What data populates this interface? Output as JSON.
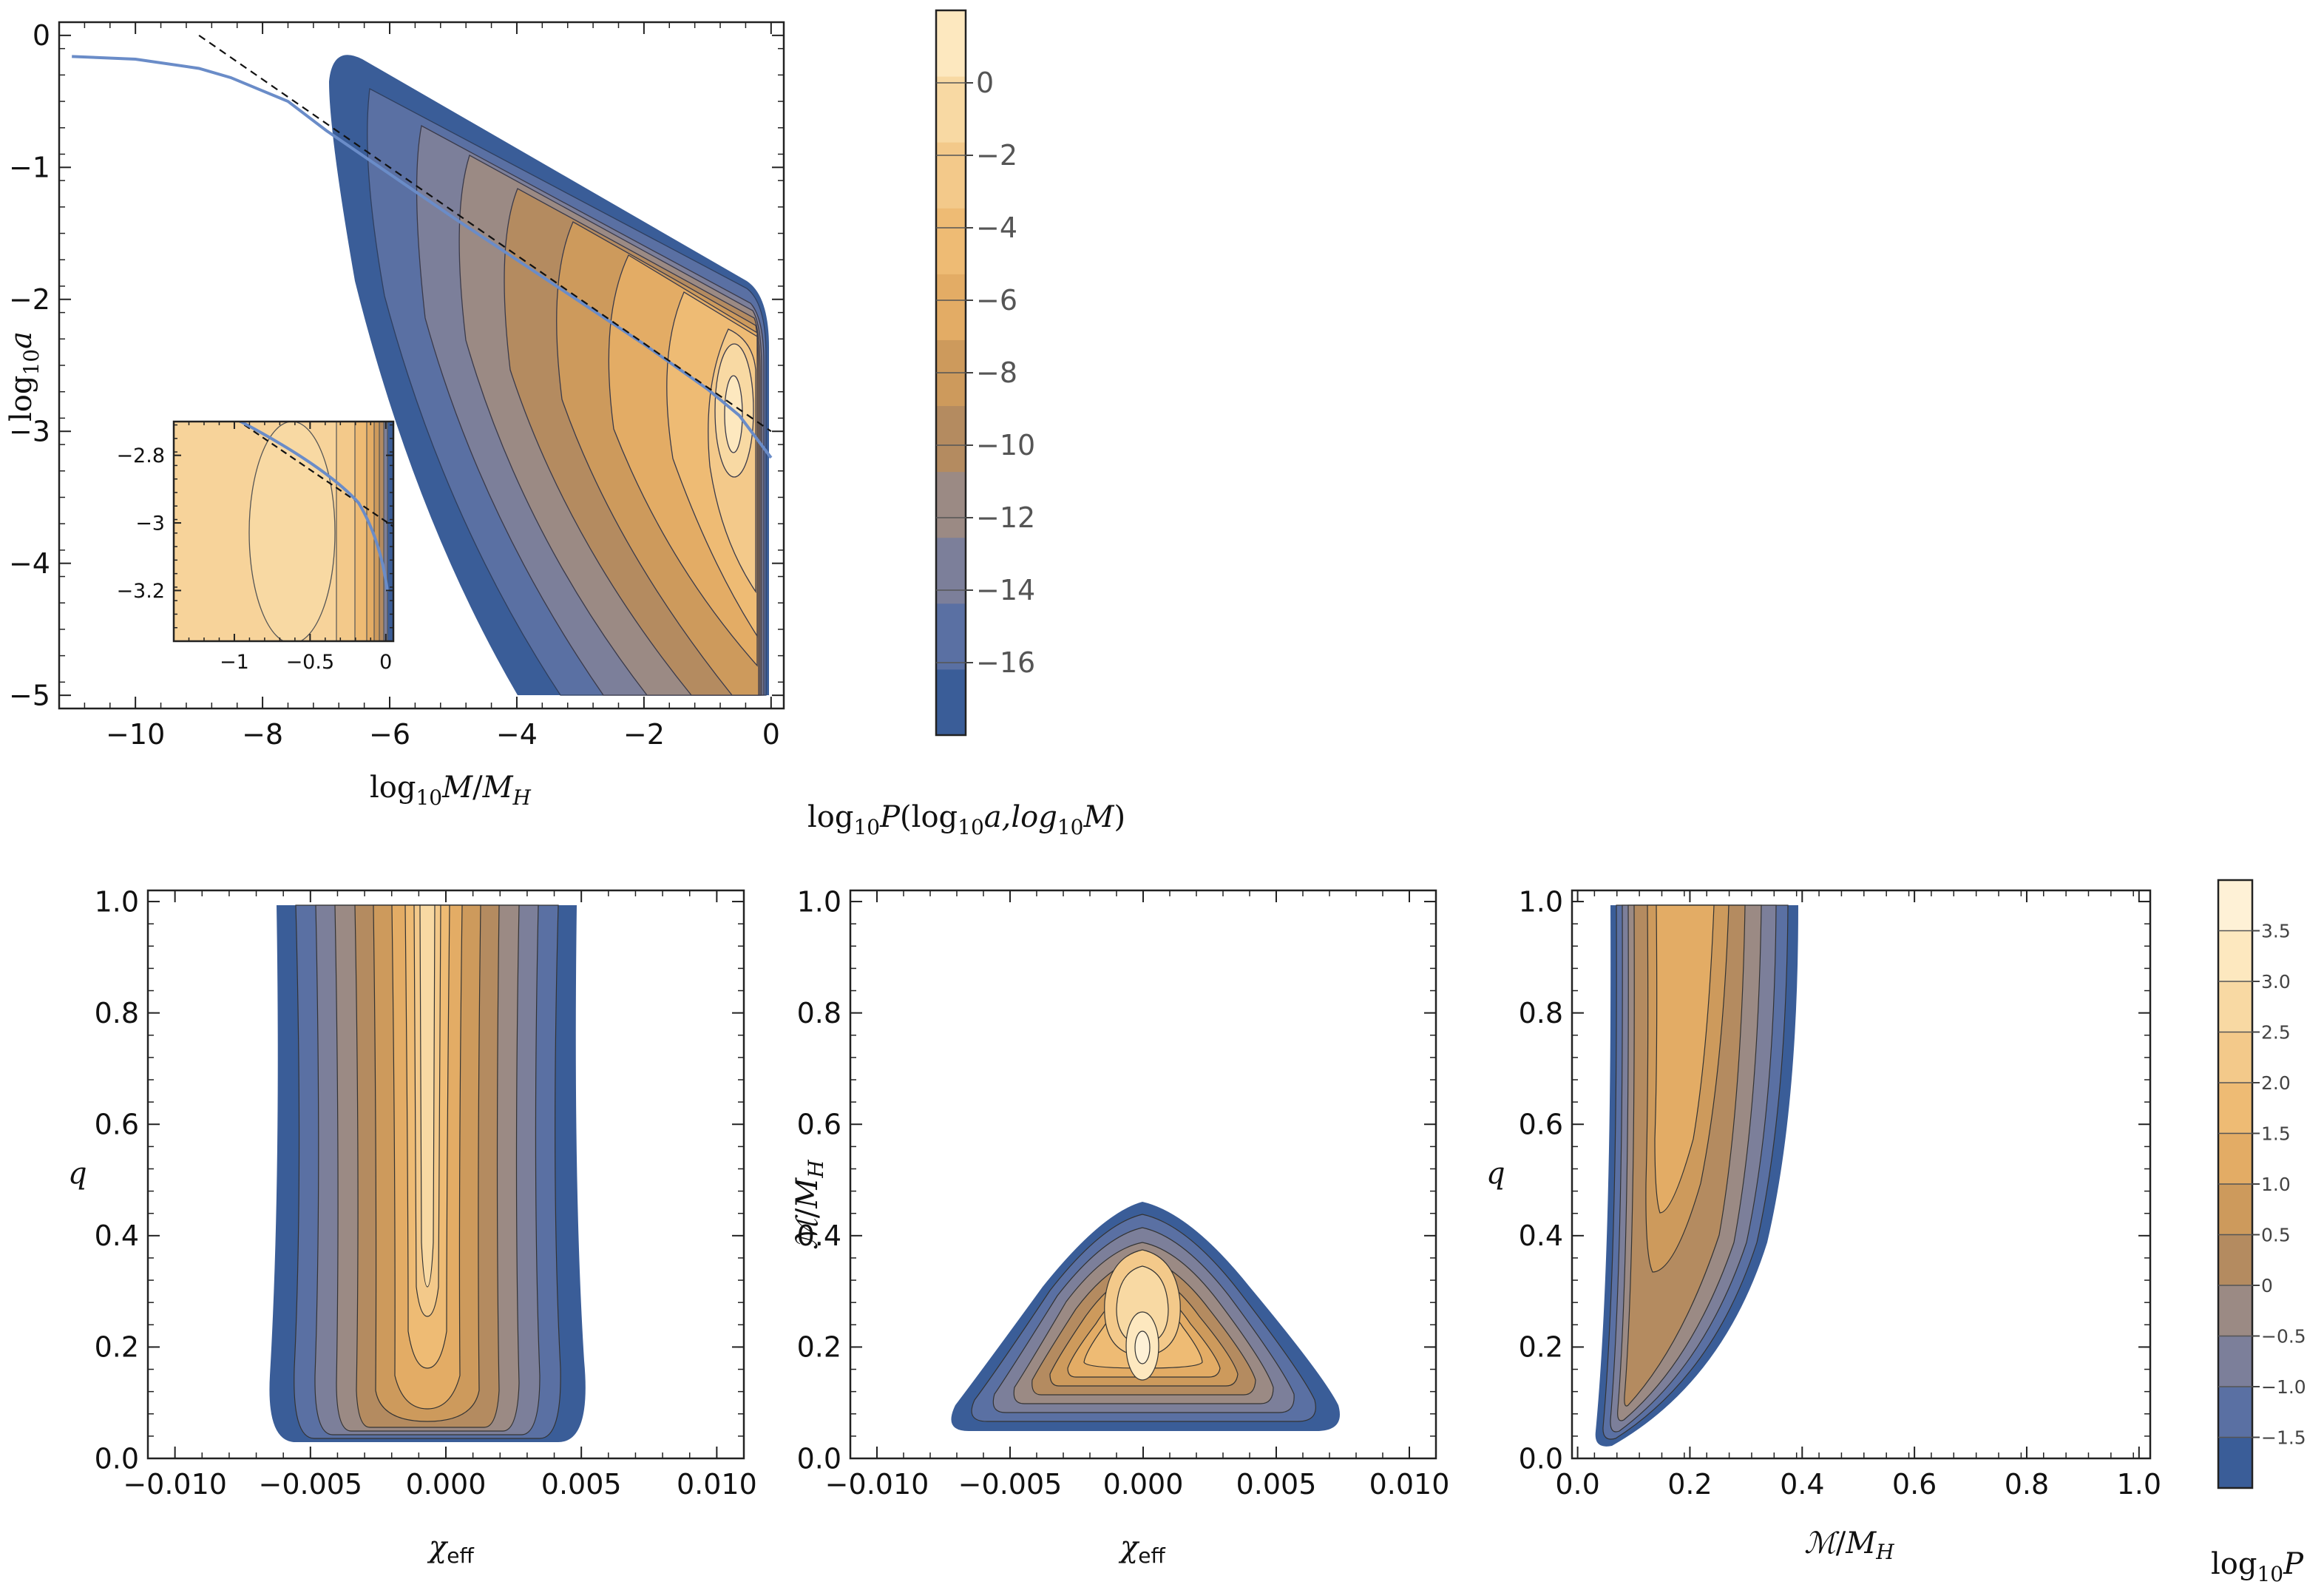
{
  "chart_data": [
    {
      "type": "contour",
      "name": "top-left",
      "xlabel": "log10 M/MH",
      "ylabel": "log10 a",
      "xlim": [
        -11.2,
        0.2
      ],
      "ylim": [
        -5.1,
        0.1
      ],
      "x_ticks": [
        -10,
        -8,
        -6,
        -4,
        -2,
        0
      ],
      "x_tick_labels": [
        "−10",
        "−8",
        "−6",
        "−4",
        "−2",
        "0"
      ],
      "y_ticks": [
        0,
        -1,
        -2,
        -3,
        -4,
        -5
      ],
      "y_tick_labels": [
        "0",
        "−1",
        "−2",
        "−3",
        "−4",
        "−5"
      ],
      "series": [
        {
          "name": "solid-curve",
          "x": [
            -11,
            -10,
            -9,
            -8.5,
            -8,
            -7.6,
            -7,
            -6,
            -5,
            -4,
            -3,
            -2,
            -1,
            -0.5,
            0
          ],
          "y": [
            -0.16,
            -0.18,
            -0.25,
            -0.32,
            -0.42,
            -0.5,
            -0.72,
            -1.05,
            -1.38,
            -1.7,
            -2.02,
            -2.34,
            -2.68,
            -2.88,
            -3.2
          ]
        },
        {
          "name": "dashed-line",
          "x": [
            -9.0,
            0
          ],
          "y": [
            0,
            -3.0
          ]
        }
      ],
      "inset": {
        "xlim": [
          -1.4,
          0.05
        ],
        "ylim": [
          -3.35,
          -2.7
        ],
        "x_ticks": [
          -1,
          -0.5,
          0
        ],
        "x_tick_labels": [
          "−1",
          "−0.5",
          "0"
        ],
        "y_ticks": [
          -2.8,
          -3,
          -3.2
        ],
        "y_tick_labels": [
          "−2.8",
          "−3",
          "−3.2"
        ]
      }
    },
    {
      "type": "colorbar",
      "name": "top-colorbar",
      "range": [
        -18,
        2
      ],
      "ticks": [
        0,
        -2,
        -4,
        -6,
        -8,
        -10,
        -12,
        -14,
        -16
      ],
      "tick_labels": [
        "0",
        "−2",
        "−4",
        "−6",
        "−8",
        "−10",
        "−12",
        "−14",
        "−16"
      ],
      "colors": [
        "#3a5d98",
        "#5a70a3",
        "#7c7f9a",
        "#9b8a84",
        "#b48b60",
        "#cd9a5c",
        "#e3ac65",
        "#eebb74",
        "#f3c98a",
        "#f8d9a3",
        "#fde8bf"
      ],
      "label": "log10P(log10a,log10M)"
    },
    {
      "type": "contour",
      "name": "bottom-left",
      "xlabel": "χeff",
      "ylabel": "q",
      "xlim": [
        -0.011,
        0.011
      ],
      "ylim": [
        0,
        1.02
      ],
      "x_ticks": [
        -0.01,
        -0.005,
        0,
        0.005,
        0.01
      ],
      "x_tick_labels": [
        "−0.010",
        "−0.005",
        "0.000",
        "0.005",
        "0.010"
      ],
      "y_ticks": [
        0,
        0.2,
        0.4,
        0.6,
        0.8,
        1.0
      ],
      "y_tick_labels": [
        "0.0",
        "0.2",
        "0.4",
        "0.6",
        "0.8",
        "1.0"
      ]
    },
    {
      "type": "contour",
      "name": "bottom-middle",
      "xlabel": "χeff",
      "ylabel": "M/MH",
      "xlim": [
        -0.011,
        0.011
      ],
      "ylim": [
        0,
        1.02
      ],
      "x_ticks": [
        -0.01,
        -0.005,
        0,
        0.005,
        0.01
      ],
      "x_tick_labels": [
        "−0.010",
        "−0.005",
        "0.000",
        "0.005",
        "0.010"
      ],
      "y_ticks": [
        0,
        0.2,
        0.4,
        0.6,
        0.8,
        1.0
      ],
      "y_tick_labels": [
        "0.0",
        "0.2",
        "0.4",
        "0.6",
        "0.8",
        "1.0"
      ]
    },
    {
      "type": "contour",
      "name": "bottom-right",
      "xlabel": "M/MH",
      "ylabel": "q",
      "xlim": [
        -0.01,
        1.02
      ],
      "ylim": [
        0,
        1.02
      ],
      "x_ticks": [
        0,
        0.2,
        0.4,
        0.6,
        0.8,
        1.0
      ],
      "x_tick_labels": [
        "0.0",
        "0.2",
        "0.4",
        "0.6",
        "0.8",
        "1.0"
      ],
      "y_ticks": [
        0,
        0.2,
        0.4,
        0.6,
        0.8,
        1.0
      ],
      "y_tick_labels": [
        "0.0",
        "0.2",
        "0.4",
        "0.6",
        "0.8",
        "1.0"
      ]
    },
    {
      "type": "colorbar",
      "name": "bottom-colorbar",
      "range": [
        -2,
        4
      ],
      "ticks": [
        3.5,
        3.0,
        2.5,
        2.0,
        1.5,
        1.0,
        0.5,
        0,
        -0.5,
        -1.0,
        -1.5
      ],
      "tick_labels": [
        "3.5",
        "3.0",
        "2.5",
        "2.0",
        "1.5",
        "1.0",
        "0.5",
        "0",
        "−0.5",
        "−1.0",
        "−1.5"
      ],
      "colors": [
        "#3a5d98",
        "#5a70a3",
        "#7c7f9a",
        "#9b8a84",
        "#b48b60",
        "#cd9a5c",
        "#e3ac65",
        "#eebb74",
        "#f3c98a",
        "#f8d9a3",
        "#fde8bf",
        "#fef1d6"
      ],
      "label": "log10P"
    }
  ],
  "labels": {
    "log": "log",
    "ten": "10",
    "a": "a",
    "M": "M",
    "MH_M": "M",
    "MH_H": "H",
    "slash": "/",
    "q": "q",
    "chi": "χ",
    "eff": "eff",
    "P": "P",
    "cb_title_tail_open": "(log",
    "cb_title_a_comma": "a,log",
    "cb_title_close": ")",
    "scriptM": "ℳ"
  }
}
